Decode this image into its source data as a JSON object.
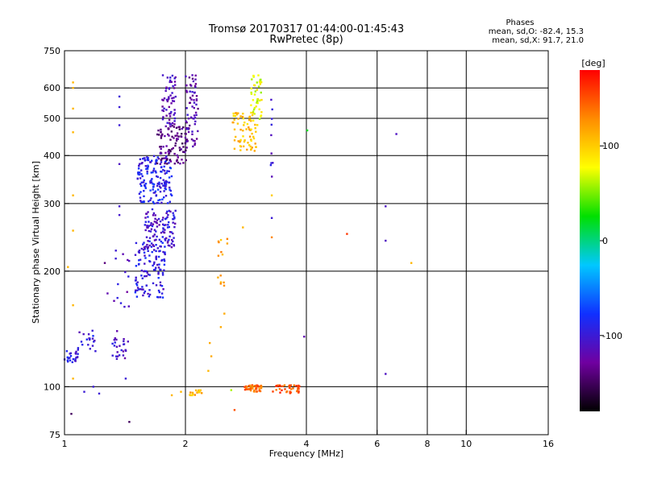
{
  "chart_data": {
    "type": "scatter",
    "title": "Tromsø 20170317 01:44:00-01:45:43",
    "subtitle": "RwPretec (8p)",
    "xlabel": "Frequency [MHz]",
    "ylabel": "Stationary phase Virtual Height [km]",
    "x_scale": "log",
    "y_scale": "log",
    "xlim": [
      1,
      16
    ],
    "ylim": [
      75,
      750
    ],
    "x_ticks": [
      1,
      2,
      4,
      6,
      8,
      10,
      16
    ],
    "y_ticks": [
      75,
      100,
      200,
      300,
      400,
      500,
      600,
      750
    ],
    "x_gridlines": [
      2,
      4,
      6,
      8,
      10
    ],
    "y_gridlines": [
      100,
      200,
      300,
      400,
      500,
      600
    ],
    "grid": true,
    "colorbar": {
      "label": "[deg]",
      "range": [
        -180,
        180
      ],
      "ticks": [
        100,
        0,
        -100
      ],
      "colors": [
        "#000000",
        "#7000a0",
        "#1030ff",
        "#00c8ff",
        "#00e000",
        "#ffff00",
        "#ff8c00",
        "#ff0000"
      ]
    },
    "phase_info": {
      "heading": "Phases",
      "line_o": "mean, sd,O: -82.4, 15.3",
      "line_x": "mean, sd,X:  91.7, 21.0"
    },
    "series": [
      {
        "name": "O",
        "phase_mean": -82.4,
        "phase_sd": 15.3
      },
      {
        "name": "X",
        "phase_mean": 91.7,
        "phase_sd": 21.0
      }
    ],
    "clusters": [
      {
        "f_range": [
          1.0,
          1.08
        ],
        "h_range": [
          115,
          125
        ],
        "phase": -95,
        "count": 24
      },
      {
        "f_range": [
          1.08,
          1.2
        ],
        "h_range": [
          120,
          140
        ],
        "phase": -100,
        "count": 20
      },
      {
        "f_range": [
          1.3,
          1.45
        ],
        "h_range": [
          118,
          140
        ],
        "phase": -110,
        "count": 26
      },
      {
        "f_range": [
          1.3,
          1.45
        ],
        "h_range": [
          160,
          230
        ],
        "phase": -110,
        "count": 14
      },
      {
        "f_range": [
          1.5,
          1.78
        ],
        "h_range": [
          170,
          240
        ],
        "phase": -95,
        "count": 120
      },
      {
        "f_range": [
          1.58,
          1.9
        ],
        "h_range": [
          230,
          290
        ],
        "phase": -105,
        "count": 110
      },
      {
        "f_range": [
          1.52,
          1.85
        ],
        "h_range": [
          300,
          400
        ],
        "phase": -90,
        "count": 160
      },
      {
        "f_range": [
          1.7,
          2.02
        ],
        "h_range": [
          380,
          480
        ],
        "phase": -135,
        "count": 100
      },
      {
        "f_range": [
          1.75,
          1.9
        ],
        "h_range": [
          480,
          650
        ],
        "phase": -115,
        "count": 60
      },
      {
        "f_range": [
          2.0,
          2.15
        ],
        "h_range": [
          420,
          650
        ],
        "phase": -120,
        "count": 70
      },
      {
        "f_range": [
          2.05,
          2.22
        ],
        "h_range": [
          95,
          98
        ],
        "phase": 110,
        "count": 16
      },
      {
        "f_range": [
          2.4,
          2.55
        ],
        "h_range": [
          180,
          250
        ],
        "phase": 115,
        "count": 14
      },
      {
        "f_range": [
          2.62,
          3.0
        ],
        "h_range": [
          410,
          520
        ],
        "phase": 105,
        "count": 70
      },
      {
        "f_range": [
          2.9,
          3.1
        ],
        "h_range": [
          480,
          650
        ],
        "phase": 75,
        "count": 45
      },
      {
        "f_range": [
          2.8,
          3.1
        ],
        "h_range": [
          97,
          101
        ],
        "phase": 140,
        "count": 45
      },
      {
        "f_range": [
          3.3,
          3.85
        ],
        "h_range": [
          96,
          101
        ],
        "phase": 150,
        "count": 40
      },
      {
        "f_range": [
          3.25,
          3.3
        ],
        "h_range": [
          350,
          590
        ],
        "phase": -100,
        "count": 10
      }
    ],
    "isolated_points": [
      {
        "f": 1.05,
        "h": 620,
        "phase": 110
      },
      {
        "f": 1.05,
        "h": 600,
        "phase": 110
      },
      {
        "f": 1.05,
        "h": 530,
        "phase": 110
      },
      {
        "f": 1.05,
        "h": 460,
        "phase": 110
      },
      {
        "f": 1.05,
        "h": 315,
        "phase": 110
      },
      {
        "f": 1.05,
        "h": 255,
        "phase": 110
      },
      {
        "f": 1.05,
        "h": 163,
        "phase": 110
      },
      {
        "f": 1.05,
        "h": 105,
        "phase": 110
      },
      {
        "f": 1.02,
        "h": 205,
        "phase": 110
      },
      {
        "f": 1.37,
        "h": 570,
        "phase": -100
      },
      {
        "f": 1.37,
        "h": 535,
        "phase": -100
      },
      {
        "f": 1.37,
        "h": 480,
        "phase": -100
      },
      {
        "f": 1.37,
        "h": 380,
        "phase": -110
      },
      {
        "f": 1.37,
        "h": 295,
        "phase": -105
      },
      {
        "f": 1.37,
        "h": 280,
        "phase": -105
      },
      {
        "f": 1.42,
        "h": 105,
        "phase": -100
      },
      {
        "f": 1.45,
        "h": 81,
        "phase": -150
      },
      {
        "f": 1.04,
        "h": 85,
        "phase": -150
      },
      {
        "f": 1.12,
        "h": 97,
        "phase": -100
      },
      {
        "f": 1.18,
        "h": 100,
        "phase": -100
      },
      {
        "f": 1.22,
        "h": 96,
        "phase": -100
      },
      {
        "f": 1.26,
        "h": 210,
        "phase": -140
      },
      {
        "f": 1.28,
        "h": 175,
        "phase": -120
      },
      {
        "f": 1.85,
        "h": 95,
        "phase": 110
      },
      {
        "f": 1.95,
        "h": 97,
        "phase": 110
      },
      {
        "f": 2.3,
        "h": 130,
        "phase": 115
      },
      {
        "f": 2.32,
        "h": 120,
        "phase": 115
      },
      {
        "f": 2.28,
        "h": 110,
        "phase": 110
      },
      {
        "f": 2.45,
        "h": 143,
        "phase": 115
      },
      {
        "f": 2.5,
        "h": 155,
        "phase": 115
      },
      {
        "f": 2.6,
        "h": 98,
        "phase": 60
      },
      {
        "f": 2.65,
        "h": 87,
        "phase": 150
      },
      {
        "f": 2.78,
        "h": 260,
        "phase": 110
      },
      {
        "f": 3.28,
        "h": 315,
        "phase": 100
      },
      {
        "f": 3.28,
        "h": 275,
        "phase": -100
      },
      {
        "f": 3.28,
        "h": 245,
        "phase": 130
      },
      {
        "f": 3.95,
        "h": 135,
        "phase": -120
      },
      {
        "f": 4.02,
        "h": 465,
        "phase": 20
      },
      {
        "f": 5.05,
        "h": 250,
        "phase": 160
      },
      {
        "f": 6.3,
        "h": 295,
        "phase": -110
      },
      {
        "f": 6.3,
        "h": 240,
        "phase": -110
      },
      {
        "f": 6.3,
        "h": 108,
        "phase": -110
      },
      {
        "f": 6.7,
        "h": 455,
        "phase": -110
      },
      {
        "f": 7.3,
        "h": 210,
        "phase": 110
      }
    ]
  }
}
